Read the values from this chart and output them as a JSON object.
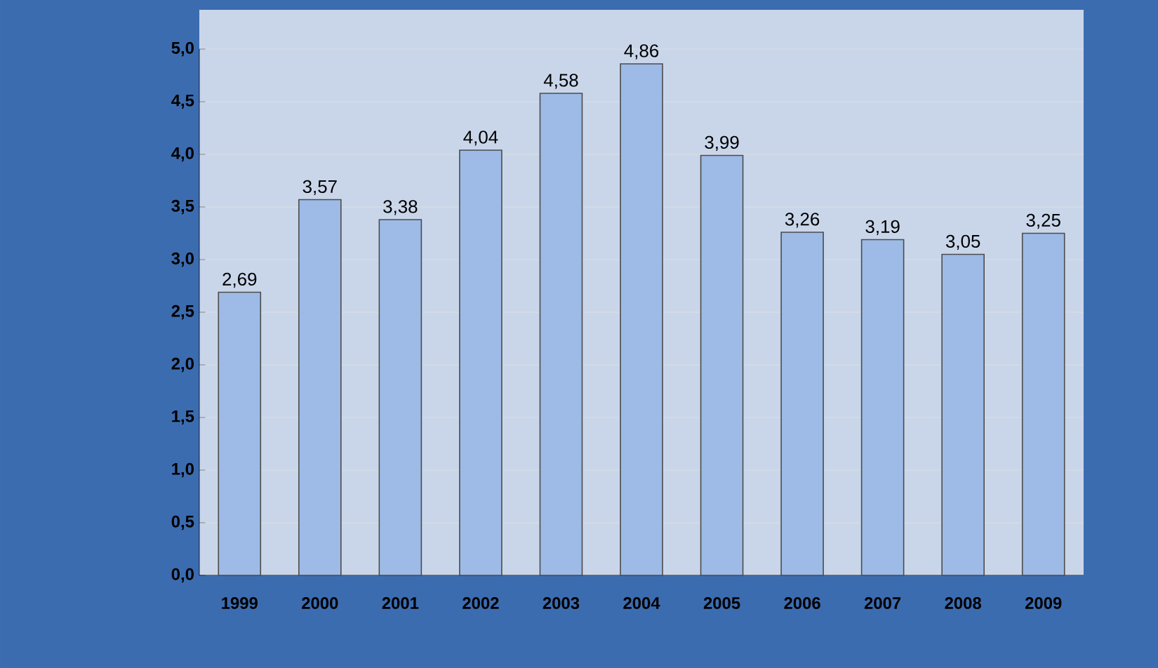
{
  "chart_data": {
    "type": "bar",
    "categories": [
      "1999",
      "2000",
      "2001",
      "2002",
      "2003",
      "2004",
      "2005",
      "2006",
      "2007",
      "2008",
      "2009"
    ],
    "values": [
      2.69,
      3.57,
      3.38,
      4.04,
      4.58,
      4.86,
      3.99,
      3.26,
      3.19,
      3.05,
      3.25
    ],
    "value_labels": [
      "2,69",
      "3,57",
      "3,38",
      "4,04",
      "4,58",
      "4,86",
      "3,99",
      "3,26",
      "3,19",
      "3,05",
      "3,25"
    ],
    "color": "#9dbbe6",
    "ylim": [
      0,
      5
    ],
    "yticks": [
      {
        "value": 0,
        "label": "0,0"
      },
      {
        "value": 0.5,
        "label": "0,5"
      },
      {
        "value": 1,
        "label": "1,0"
      },
      {
        "value": 1.5,
        "label": "1,5"
      },
      {
        "value": 2,
        "label": "2,0"
      },
      {
        "value": 2.5,
        "label": "2,5"
      },
      {
        "value": 3,
        "label": "3,0"
      },
      {
        "value": 3.5,
        "label": "3,5"
      },
      {
        "value": 4,
        "label": "4,0"
      },
      {
        "value": 4.5,
        "label": "4,5"
      },
      {
        "value": 5,
        "label": "5,0"
      }
    ],
    "grid": "y"
  }
}
